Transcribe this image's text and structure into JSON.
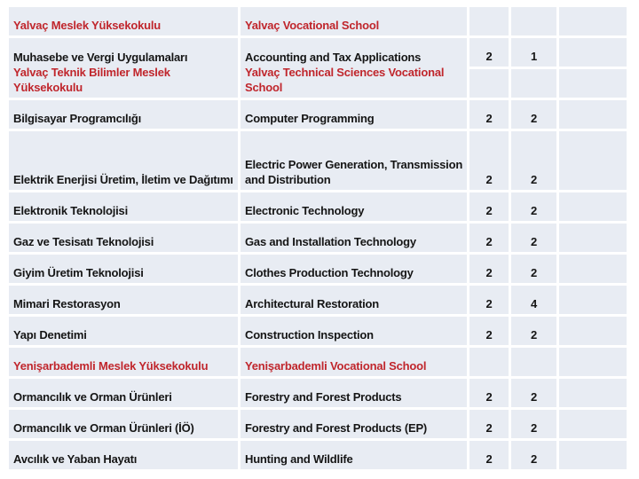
{
  "page": {
    "background_color": "#ffffff",
    "cell_background_color": "#e8ecf3",
    "grid_line_color": "#ffffff",
    "school_text_color": "#c0262c",
    "program_text_color": "#151515"
  },
  "table": {
    "rows": [
      {
        "type": "school",
        "tr": "Yalvaç Meslek Yüksekokulu",
        "en": "Yalvaç Vocational School",
        "v1": "",
        "v2": ""
      },
      {
        "type": "program",
        "tr": "Muhasebe ve Vergi Uygulamaları",
        "en": "Accounting and Tax Applications",
        "v1": "2",
        "v2": "1",
        "merge_with_next": true
      },
      {
        "type": "school",
        "tr": "Yalvaç Teknik Bilimler Meslek Yüksekokulu",
        "en": "Yalvaç Technical Sciences Vocational School",
        "v1": "",
        "v2": ""
      },
      {
        "type": "program",
        "tr": "Bilgisayar Programcılığı",
        "en": "Computer Programming",
        "v1": "2",
        "v2": "2"
      },
      {
        "type": "program",
        "tr": "Elektrik Enerjisi Üretim, İletim ve Dağıtımı",
        "en": "Electric Power Generation, Transmission and Distribution",
        "v1": "2",
        "v2": "2",
        "tall": true
      },
      {
        "type": "program",
        "tr": "Elektronik Teknolojisi",
        "en": "Electronic Technology",
        "v1": "2",
        "v2": "2"
      },
      {
        "type": "program",
        "tr": "Gaz ve Tesisatı Teknolojisi",
        "en": "Gas and Installation Technology",
        "v1": "2",
        "v2": "2"
      },
      {
        "type": "program",
        "tr": "Giyim Üretim Teknolojisi",
        "en": "Clothes Production Technology",
        "v1": "2",
        "v2": "2"
      },
      {
        "type": "program",
        "tr": "Mimari Restorasyon",
        "en": "Architectural Restoration",
        "v1": "2",
        "v2": "4"
      },
      {
        "type": "program",
        "tr": "Yapı Denetimi",
        "en": "Construction Inspection",
        "v1": "2",
        "v2": "2"
      },
      {
        "type": "school",
        "tr": "Yenişarbademli Meslek Yüksekokulu",
        "en": "Yenişarbademli Vocational School",
        "v1": "",
        "v2": ""
      },
      {
        "type": "program",
        "tr": "Ormancılık ve Orman Ürünleri",
        "en": "Forestry and Forest Products",
        "v1": "2",
        "v2": "2"
      },
      {
        "type": "program",
        "tr": "Ormancılık ve Orman Ürünleri (İÖ)",
        "en": "Forestry and Forest Products (EP)",
        "v1": "2",
        "v2": "2"
      },
      {
        "type": "program",
        "tr": "Avcılık ve Yaban Hayatı",
        "en": "Hunting and Wildlife",
        "v1": "2",
        "v2": "2"
      }
    ]
  }
}
